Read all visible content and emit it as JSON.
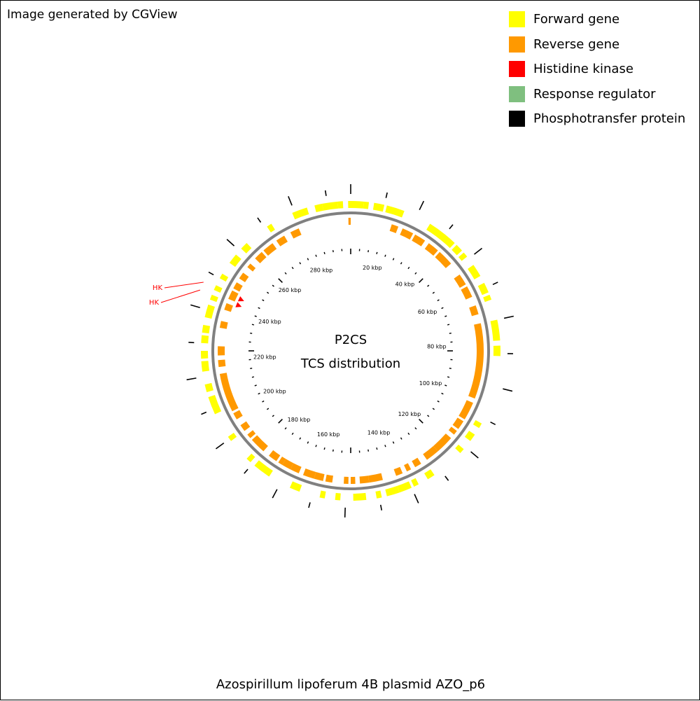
{
  "credit": "Image generated by CGView",
  "legend": [
    {
      "label": "Forward gene",
      "color": "#ffff00"
    },
    {
      "label": "Reverse gene",
      "color": "#ff9900"
    },
    {
      "label": "Histidine kinase",
      "color": "#ff0000"
    },
    {
      "label": "Response regulator",
      "color": "#7fbf7f"
    },
    {
      "label": "Phosphotransfer protein",
      "color": "#000000"
    }
  ],
  "map": {
    "title_line1": "P2CS",
    "title_line2": "TCS distribution",
    "caption": "Azospirillum lipoferum 4B plasmid AZO_p6",
    "backbone_color": "#808080",
    "tick_labels": [
      "20 kbp",
      "40 kbp",
      "60 kbp",
      "80 kbp",
      "100 kbp",
      "120 kbp",
      "140 kbp",
      "160 kbp",
      "180 kbp",
      "200 kbp",
      "220 kbp",
      "240 kbp",
      "260 kbp",
      "280 kbp"
    ],
    "tick_label_angles": [
      14.5,
      39,
      63,
      87,
      112,
      137,
      161,
      195,
      217,
      242,
      266,
      290,
      315,
      340
    ],
    "minor_tick_step_deg": 5,
    "major_tick_angles": [
      0,
      45,
      90,
      135,
      180,
      225,
      270,
      315
    ],
    "outer_tick_angles": [
      0,
      13,
      26,
      39,
      52,
      65,
      78,
      91,
      104,
      117,
      130,
      143,
      156,
      169,
      182,
      195,
      208,
      221,
      234,
      247,
      260,
      273,
      286,
      299,
      312,
      325,
      338,
      351
    ],
    "forward_genes": [
      [
        337,
        343
      ],
      [
        346,
        349
      ],
      [
        349,
        355
      ],
      [
        355,
        357
      ],
      [
        359,
        5
      ],
      [
        5,
        7
      ],
      [
        9,
        13
      ],
      [
        14,
        21
      ],
      [
        32,
        44
      ],
      [
        45,
        48
      ],
      [
        49,
        51
      ],
      [
        55,
        60
      ],
      [
        63,
        67
      ],
      [
        68,
        70
      ],
      [
        78,
        86
      ],
      [
        88,
        92
      ],
      [
        119,
        121
      ],
      [
        124,
        127
      ],
      [
        131,
        133
      ],
      [
        146,
        149
      ],
      [
        153,
        155
      ],
      [
        156,
        161
      ],
      [
        161,
        166
      ],
      [
        168,
        170
      ],
      [
        174,
        179
      ],
      [
        184,
        186
      ],
      [
        190,
        192
      ],
      [
        200,
        204
      ],
      [
        213,
        220
      ],
      [
        222,
        224
      ],
      [
        233,
        235
      ],
      [
        245,
        252
      ],
      [
        254,
        257
      ],
      [
        262,
        266
      ],
      [
        267,
        270
      ],
      [
        273,
        276
      ],
      [
        277,
        280
      ],
      [
        283,
        288
      ],
      [
        290,
        292
      ],
      [
        294,
        296
      ],
      [
        299,
        301
      ],
      [
        306,
        310
      ],
      [
        313,
        316
      ],
      [
        326,
        328
      ]
    ],
    "reverse_genes": [
      [
        359,
        0
      ],
      [
        18,
        21
      ],
      [
        23,
        28
      ],
      [
        29,
        34
      ],
      [
        36,
        41
      ],
      [
        42,
        49
      ],
      [
        55,
        60
      ],
      [
        61,
        66
      ],
      [
        70,
        74
      ],
      [
        78,
        111
      ],
      [
        113,
        121
      ],
      [
        122,
        126
      ],
      [
        127,
        129
      ],
      [
        131,
        139
      ],
      [
        139,
        145
      ],
      [
        148,
        151
      ],
      [
        153,
        155
      ],
      [
        157,
        160
      ],
      [
        166,
        172
      ],
      [
        172,
        176
      ],
      [
        178,
        180
      ],
      [
        181,
        183
      ],
      [
        188,
        191
      ],
      [
        192,
        196
      ],
      [
        196,
        201
      ],
      [
        203,
        207
      ],
      [
        207,
        211
      ],
      [
        211,
        213
      ],
      [
        214,
        218
      ],
      [
        221,
        228
      ],
      [
        229,
        231
      ],
      [
        233,
        236
      ],
      [
        239,
        242
      ],
      [
        243,
        260
      ],
      [
        263,
        266
      ],
      [
        268,
        272
      ],
      [
        280,
        283
      ],
      [
        288,
        291
      ],
      [
        293,
        297
      ],
      [
        298,
        301
      ],
      [
        303,
        306
      ],
      [
        309,
        311
      ],
      [
        314,
        318
      ],
      [
        319,
        324
      ],
      [
        326,
        330
      ],
      [
        333,
        337
      ]
    ],
    "hk_angles": [
      295,
      292
    ],
    "hk_label": "HK"
  }
}
